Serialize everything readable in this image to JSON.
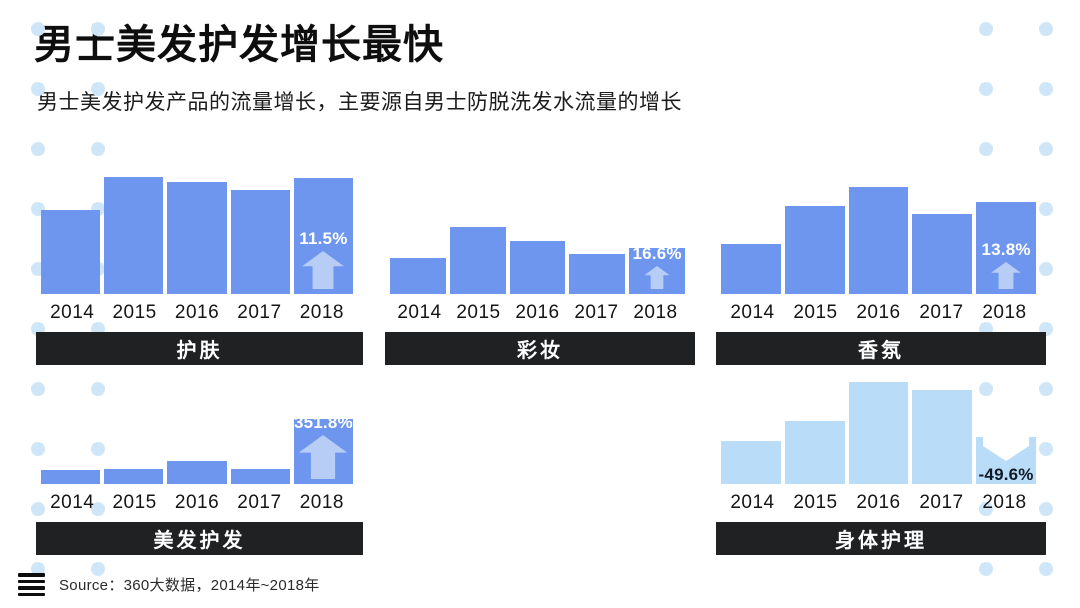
{
  "page": {
    "title": "男士美发护发增长最快",
    "subtitle": "男士美发护发产品的流量增长，主要源自男士防脱洗发水流量的增长",
    "source": "Source：360大数据，2014年~2018年"
  },
  "colors": {
    "bar_blue": "#6e96ee",
    "bar_light_blue": "#b9dcf9",
    "arrow_on_blue": "#b7cdf5",
    "arrow_on_light": "#ffffff",
    "label_bar_bg": "#1f2123",
    "dot": "#cfe6f9",
    "annotation_light_text": "#ffffff",
    "annotation_dark_text": "#111a24"
  },
  "chart_data": [
    {
      "type": "bar",
      "id": "skincare",
      "title": "护肤",
      "categories": [
        "2014",
        "2015",
        "2016",
        "2017",
        "2018"
      ],
      "values": [
        84,
        117,
        112,
        104,
        116
      ],
      "value_note": "relative traffic volume, estimated (no value axis shown)",
      "bar_style": "blue",
      "annotation": {
        "text": "11.5%",
        "direction": "up",
        "on_category": "2018"
      }
    },
    {
      "type": "bar",
      "id": "makeup",
      "title": "彩妆",
      "categories": [
        "2014",
        "2015",
        "2016",
        "2017",
        "2018"
      ],
      "values": [
        36,
        67,
        53,
        40,
        46
      ],
      "value_note": "relative traffic volume, estimated (no value axis shown)",
      "bar_style": "blue",
      "annotation": {
        "text": "16.6%",
        "direction": "up",
        "on_category": "2018"
      }
    },
    {
      "type": "bar",
      "id": "fragrance",
      "title": "香氛",
      "categories": [
        "2014",
        "2015",
        "2016",
        "2017",
        "2018"
      ],
      "values": [
        50,
        88,
        107,
        80,
        92
      ],
      "value_note": "relative traffic volume, estimated (no value axis shown)",
      "bar_style": "blue",
      "annotation": {
        "text": "13.8%",
        "direction": "up",
        "on_category": "2018"
      }
    },
    {
      "type": "bar",
      "id": "haircare",
      "title": "美发护发",
      "categories": [
        "2014",
        "2015",
        "2016",
        "2017",
        "2018"
      ],
      "values": [
        14,
        15,
        23,
        15,
        65
      ],
      "value_note": "relative traffic volume, estimated (no value axis shown)",
      "bar_style": "blue",
      "annotation": {
        "text": "351.8%",
        "direction": "up",
        "on_category": "2018"
      }
    },
    {
      "type": "bar",
      "id": "bodycare",
      "title": "身体护理",
      "categories": [
        "2014",
        "2015",
        "2016",
        "2017",
        "2018"
      ],
      "values": [
        43,
        63,
        102,
        94,
        47
      ],
      "value_note": "relative traffic volume, estimated (no value axis shown)",
      "bar_style": "light",
      "annotation": {
        "text": "-49.6%",
        "direction": "down",
        "on_category": "2018"
      }
    }
  ]
}
